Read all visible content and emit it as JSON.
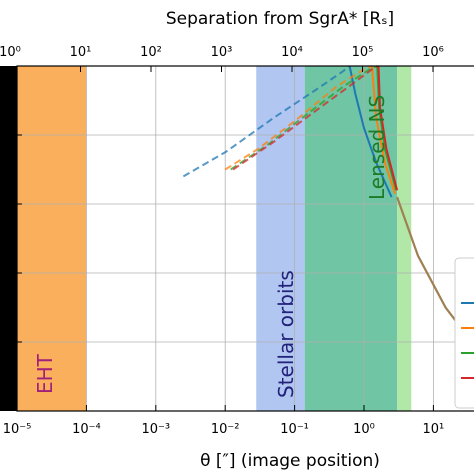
{
  "chart_data": {
    "type": "line",
    "bottom_axis": {
      "label": "θ [″] (image position)",
      "scale": "log",
      "ticks": [
        {
          "value": 1e-05,
          "label": "10⁻⁵"
        },
        {
          "value": 0.0001,
          "label": "10⁻⁴"
        },
        {
          "value": 0.001,
          "label": "10⁻³"
        },
        {
          "value": 0.01,
          "label": "10⁻²"
        },
        {
          "value": 0.1,
          "label": "10⁻¹"
        },
        {
          "value": 1,
          "label": "10⁰"
        },
        {
          "value": 10,
          "label": "10¹"
        }
      ]
    },
    "top_axis": {
      "label": "Separation from SgrA* [Rₛ]",
      "scale": "log",
      "ticks": [
        {
          "value": 1,
          "label": "10⁰"
        },
        {
          "value": 10,
          "label": "10¹"
        },
        {
          "value": 100,
          "label": "10²"
        },
        {
          "value": 1000,
          "label": "10³"
        },
        {
          "value": 10000,
          "label": "10⁴"
        },
        {
          "value": 100000,
          "label": "10⁵"
        },
        {
          "value": 1000000,
          "label": "10⁶"
        }
      ]
    },
    "grid": true,
    "regions": [
      {
        "name": "EHT",
        "x_range": [
          1e-05,
          0.0001
        ],
        "color": "#f9a64a"
      },
      {
        "name": "Stellar orbits",
        "x_range": [
          0.028,
          0.14
        ],
        "color": "#a8c1ef"
      },
      {
        "name": "Lensed NS",
        "x_range": [
          0.14,
          3.0
        ],
        "color": "#5fbf9a"
      },
      {
        "name": "",
        "x_range": [
          3.0,
          4.8
        ],
        "color": "#a9e59e"
      }
    ],
    "region_labels": {
      "eht": "EHT",
      "stellar": "Stellar orbits",
      "lensed": "Lensed NS"
    },
    "series": [
      {
        "color": "#1f77b4",
        "dashed": [
          [
            0.0025,
            0.68
          ],
          [
            0.01,
            0.75
          ],
          [
            0.05,
            0.85
          ],
          [
            0.2,
            0.93
          ],
          [
            0.5,
            0.985
          ],
          [
            0.62,
            1.0
          ]
        ],
        "solid": [
          [
            0.62,
            1.0
          ],
          [
            0.75,
            0.92
          ],
          [
            1.0,
            0.82
          ],
          [
            1.5,
            0.72
          ],
          [
            2.5,
            0.62
          ]
        ]
      },
      {
        "color": "#ff7f0e",
        "dashed": [
          [
            0.01,
            0.7
          ],
          [
            0.03,
            0.76
          ],
          [
            0.1,
            0.84
          ],
          [
            0.4,
            0.94
          ],
          [
            1.0,
            0.99
          ],
          [
            1.3,
            1.0
          ]
        ],
        "solid": [
          [
            1.3,
            1.0
          ],
          [
            1.5,
            0.85
          ],
          [
            2.0,
            0.72
          ],
          [
            2.8,
            0.63
          ]
        ]
      },
      {
        "color": "#2ca02c",
        "dashed": [
          [
            0.012,
            0.7
          ],
          [
            0.04,
            0.77
          ],
          [
            0.15,
            0.86
          ],
          [
            0.5,
            0.94
          ],
          [
            1.2,
            0.99
          ],
          [
            1.55,
            1.0
          ]
        ],
        "solid": [
          [
            1.55,
            1.0
          ],
          [
            1.65,
            0.88
          ],
          [
            2.0,
            0.76
          ],
          [
            2.9,
            0.64
          ]
        ]
      },
      {
        "color": "#d62728",
        "dashed": [
          [
            0.013,
            0.7
          ],
          [
            0.05,
            0.78
          ],
          [
            0.2,
            0.87
          ],
          [
            0.6,
            0.94
          ],
          [
            1.3,
            0.99
          ],
          [
            1.62,
            1.0
          ]
        ],
        "solid": [
          [
            1.62,
            1.0
          ],
          [
            1.7,
            0.88
          ],
          [
            2.1,
            0.76
          ],
          [
            3.0,
            0.64
          ]
        ]
      }
    ],
    "common_tail": {
      "color": "#a08052",
      "points": [
        [
          3.0,
          0.62
        ],
        [
          6.0,
          0.45
        ],
        [
          15.0,
          0.3
        ],
        [
          30.0,
          0.22
        ]
      ]
    },
    "colors": {
      "blue": "#1f77b4",
      "orange": "#ff7f0e",
      "green": "#2ca02c",
      "red": "#d62728",
      "black_band": "#000000"
    }
  }
}
